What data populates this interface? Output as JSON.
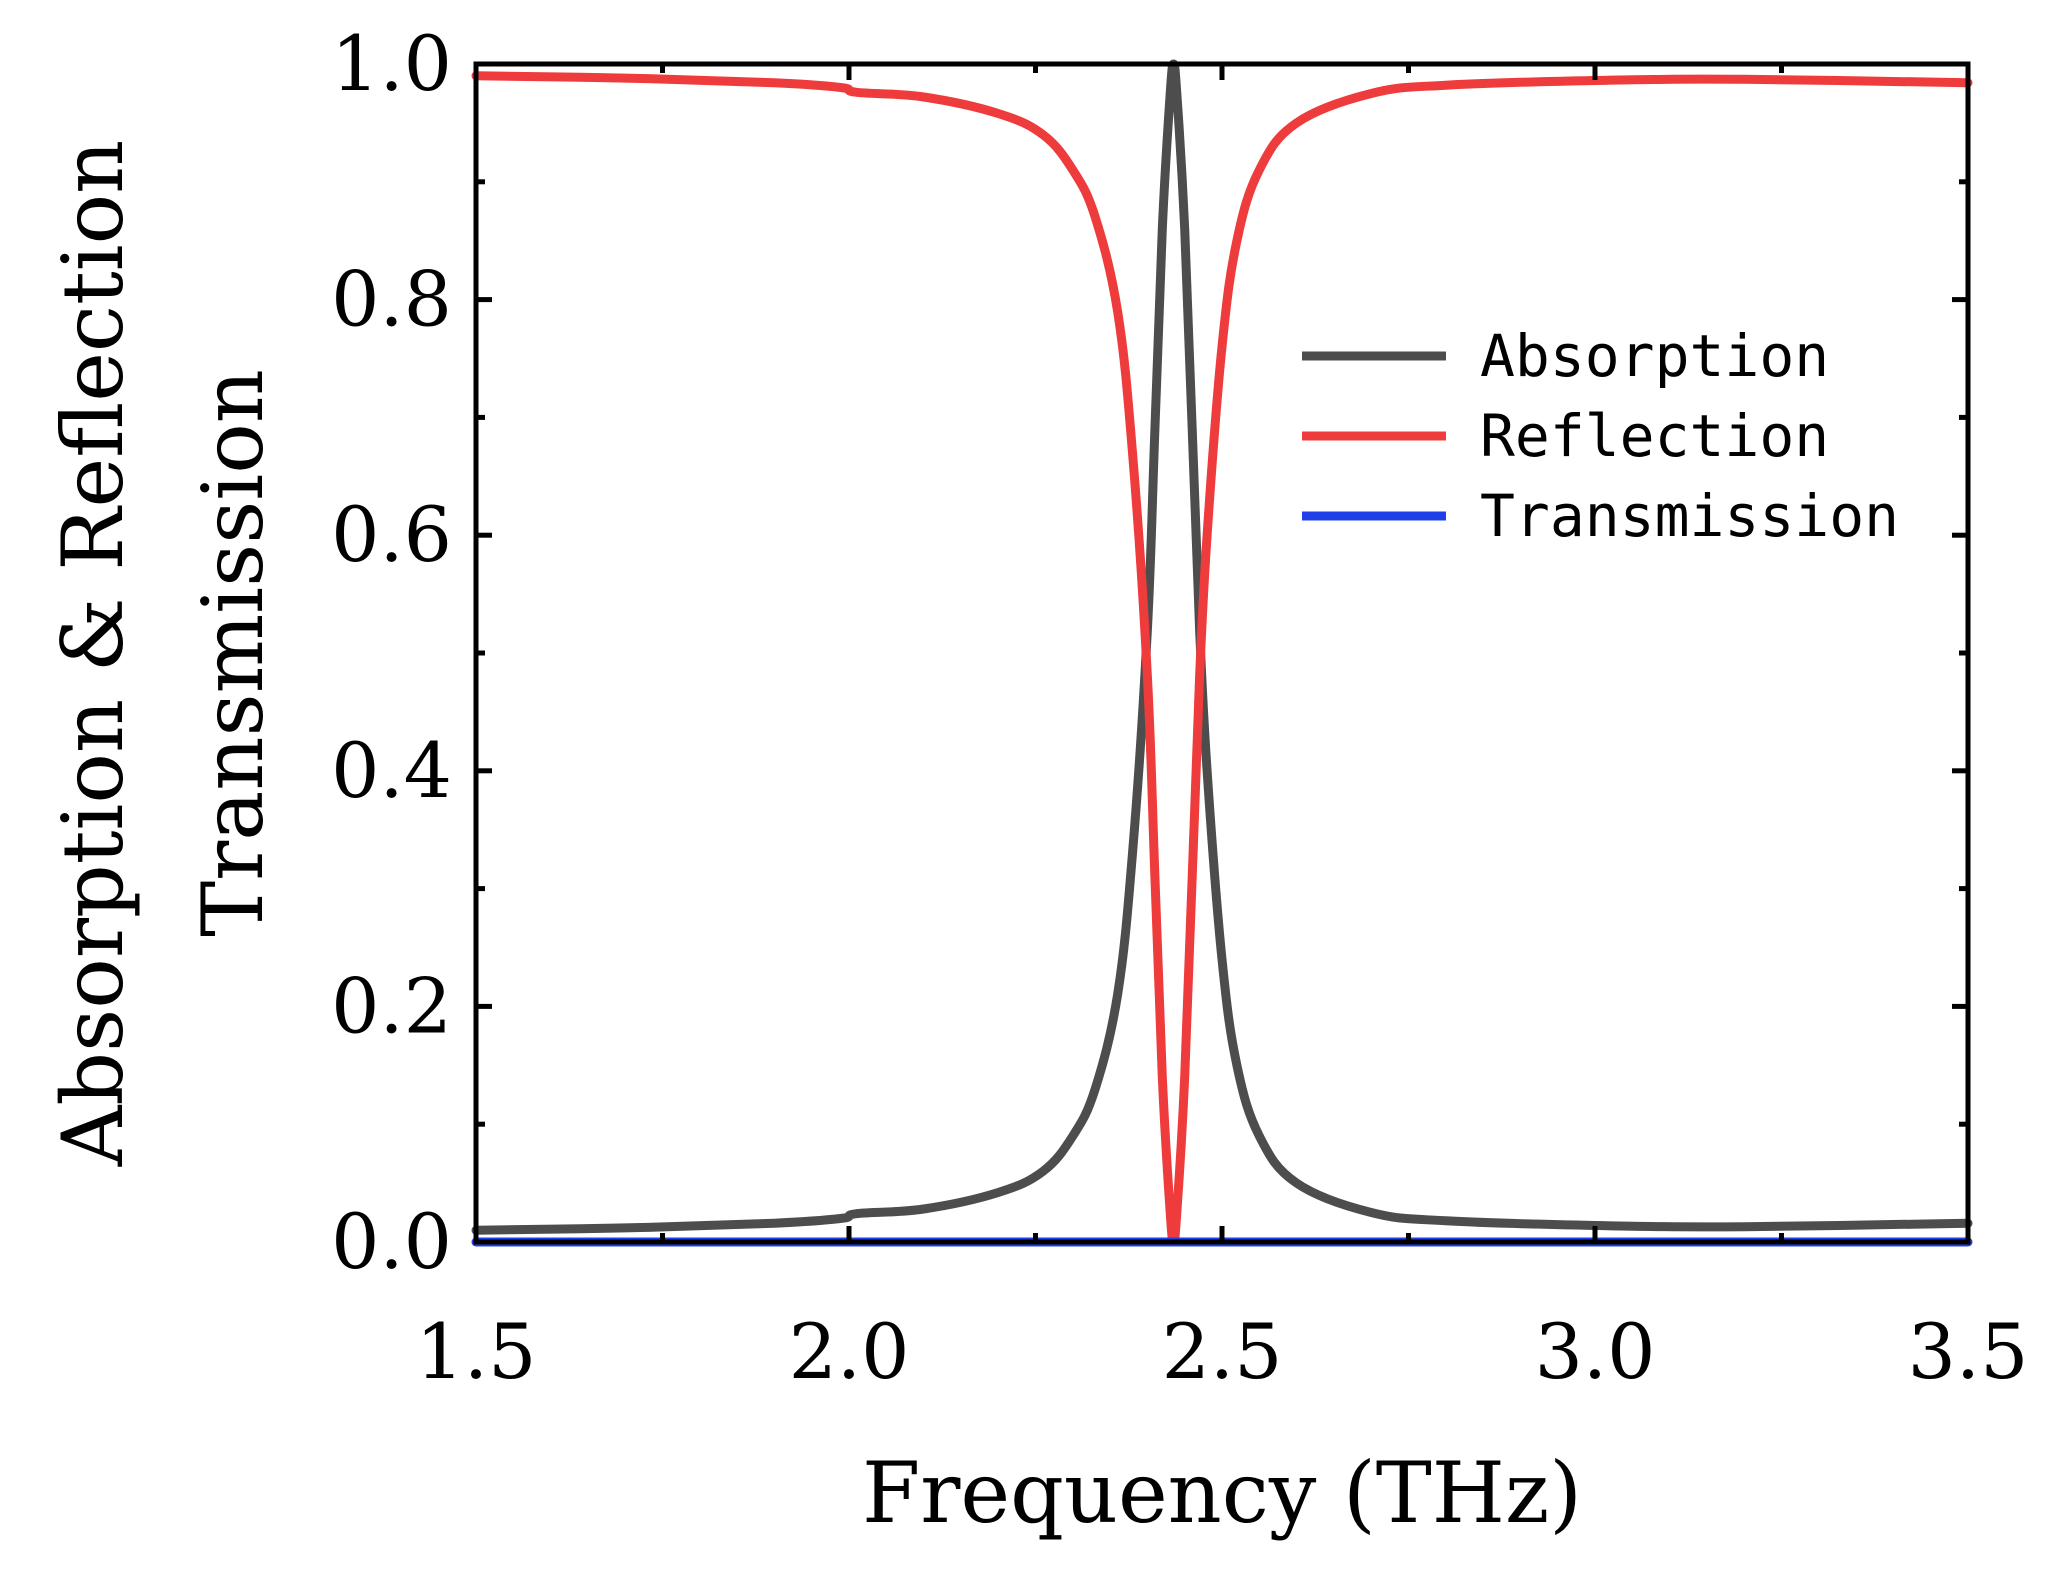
{
  "chart_data": {
    "type": "line",
    "title": "",
    "xlabel": "Frequency (THz)",
    "ylabel_line1": "Absorption & Reflection",
    "ylabel_line2": "Transmission",
    "xlim": [
      1.5,
      3.5
    ],
    "ylim": [
      0.0,
      1.0
    ],
    "xticks": [
      1.5,
      2.0,
      2.5,
      3.0,
      3.5
    ],
    "xtick_labels": [
      "1.5",
      "2.0",
      "2.5",
      "3.0",
      "3.5"
    ],
    "yticks": [
      0.0,
      0.2,
      0.4,
      0.6,
      0.8,
      1.0
    ],
    "ytick_labels": [
      "0.0",
      "0.2",
      "0.4",
      "0.6",
      "0.8",
      "1.0"
    ],
    "grid": false,
    "legend_position": "right",
    "series": [
      {
        "name": "Absorption",
        "color": "#4d4d4d",
        "x": [
          1.5,
          1.7,
          1.9,
          1.99,
          2.01,
          2.1,
          2.2,
          2.26,
          2.3,
          2.33,
          2.36,
          2.38,
          2.4,
          2.41,
          2.42,
          2.43,
          2.435,
          2.44,
          2.45,
          2.46,
          2.47,
          2.48,
          2.5,
          2.52,
          2.55,
          2.6,
          2.7,
          2.8,
          3.0,
          3.2,
          3.5
        ],
        "y": [
          0.01,
          0.012,
          0.016,
          0.02,
          0.024,
          0.028,
          0.042,
          0.06,
          0.09,
          0.13,
          0.21,
          0.33,
          0.52,
          0.69,
          0.86,
          0.97,
          1.0,
          0.97,
          0.86,
          0.69,
          0.52,
          0.4,
          0.24,
          0.15,
          0.09,
          0.05,
          0.025,
          0.018,
          0.014,
          0.013,
          0.016
        ]
      },
      {
        "name": "Reflection",
        "color": "#ee3b3b",
        "x": [
          1.5,
          1.7,
          1.9,
          1.99,
          2.01,
          2.1,
          2.2,
          2.26,
          2.3,
          2.33,
          2.36,
          2.38,
          2.4,
          2.41,
          2.42,
          2.43,
          2.435,
          2.44,
          2.45,
          2.46,
          2.47,
          2.48,
          2.5,
          2.52,
          2.55,
          2.6,
          2.7,
          2.8,
          3.0,
          3.2,
          3.5
        ],
        "y": [
          0.99,
          0.988,
          0.984,
          0.98,
          0.976,
          0.972,
          0.958,
          0.94,
          0.91,
          0.87,
          0.79,
          0.67,
          0.48,
          0.31,
          0.14,
          0.03,
          0.0,
          0.03,
          0.14,
          0.31,
          0.48,
          0.6,
          0.76,
          0.85,
          0.91,
          0.95,
          0.975,
          0.982,
          0.986,
          0.987,
          0.984
        ]
      },
      {
        "name": "Transmission",
        "color": "#1f3fe8",
        "x": [
          1.5,
          3.5
        ],
        "y": [
          0.0,
          0.0
        ]
      }
    ]
  }
}
